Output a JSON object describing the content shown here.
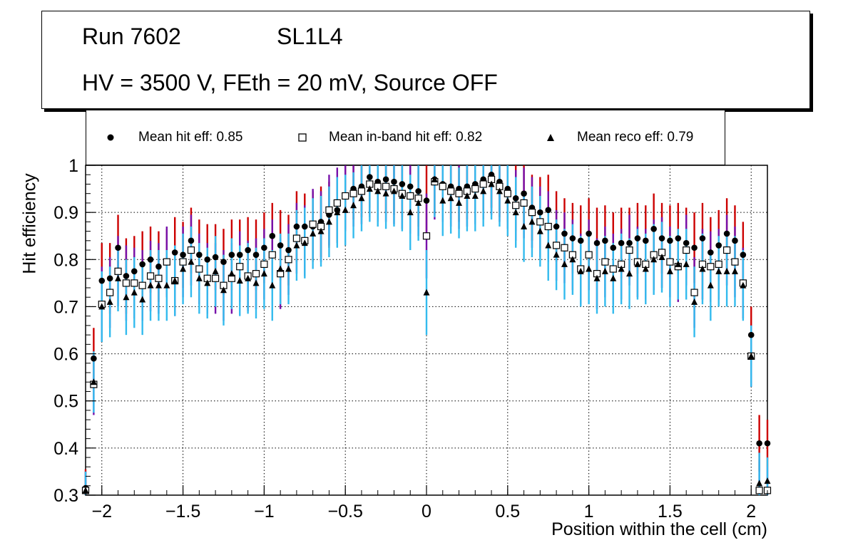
{
  "header": {
    "run_label": "Run 7602",
    "layer_label": "SL1L4",
    "conditions": "HV = 3500 V, FEth = 20 mV, Source OFF"
  },
  "legend": [
    {
      "marker": "filled-circle",
      "label": "Mean hit  eff: 0.85"
    },
    {
      "marker": "open-square",
      "label": "Mean in-band hit eff: 0.82"
    },
    {
      "marker": "filled-triangle",
      "label": "Mean reco eff: 0.79"
    }
  ],
  "chart_data": {
    "type": "scatter",
    "xlabel": "Position within the cell (cm)",
    "ylabel": "Hit efficiency",
    "xlim": [
      -2.1,
      2.1
    ],
    "ylim": [
      0.3,
      1.0
    ],
    "xticks": [
      {
        "value": -2,
        "label": "−2"
      },
      {
        "value": -1.5,
        "label": "−1.5"
      },
      {
        "value": -1,
        "label": "−1"
      },
      {
        "value": -0.5,
        "label": "−0.5"
      },
      {
        "value": 0,
        "label": "0"
      },
      {
        "value": 0.5,
        "label": "0.5"
      },
      {
        "value": 1,
        "label": "1"
      },
      {
        "value": 1.5,
        "label": "1.5"
      },
      {
        "value": 2,
        "label": "2"
      }
    ],
    "yticks": [
      {
        "value": 0.3,
        "label": "0.3"
      },
      {
        "value": 0.4,
        "label": "0.4"
      },
      {
        "value": 0.5,
        "label": "0.5"
      },
      {
        "value": 0.6,
        "label": "0.6"
      },
      {
        "value": 0.7,
        "label": "0.7"
      },
      {
        "value": 0.8,
        "label": "0.8"
      },
      {
        "value": 0.9,
        "label": "0.9"
      },
      {
        "value": 1.0,
        "label": "1"
      }
    ],
    "grid": true,
    "x": [
      -2.1,
      -2.05,
      -2.0,
      -1.95,
      -1.9,
      -1.85,
      -1.8,
      -1.75,
      -1.7,
      -1.65,
      -1.6,
      -1.55,
      -1.5,
      -1.45,
      -1.4,
      -1.35,
      -1.3,
      -1.25,
      -1.2,
      -1.15,
      -1.1,
      -1.05,
      -1.0,
      -0.95,
      -0.9,
      -0.85,
      -0.8,
      -0.75,
      -0.7,
      -0.65,
      -0.6,
      -0.55,
      -0.5,
      -0.45,
      -0.4,
      -0.35,
      -0.3,
      -0.25,
      -0.2,
      -0.15,
      -0.1,
      -0.05,
      0.0,
      0.05,
      0.1,
      0.15,
      0.2,
      0.25,
      0.3,
      0.35,
      0.4,
      0.45,
      0.5,
      0.55,
      0.6,
      0.65,
      0.7,
      0.75,
      0.8,
      0.85,
      0.9,
      0.95,
      1.0,
      1.05,
      1.1,
      1.15,
      1.2,
      1.25,
      1.3,
      1.35,
      1.4,
      1.45,
      1.5,
      1.55,
      1.6,
      1.65,
      1.7,
      1.75,
      1.8,
      1.85,
      1.9,
      1.95,
      2.0,
      2.05,
      2.1
    ],
    "series": [
      {
        "name": "Mean hit eff",
        "marker": "filled-circle",
        "error_color": "#cc0000",
        "errors": [
          0.04,
          0.065,
          0.08,
          0.075,
          0.07,
          0.08,
          0.075,
          0.07,
          0.07,
          0.075,
          0.07,
          0.075,
          0.07,
          0.07,
          0.075,
          0.075,
          0.07,
          0.07,
          0.075,
          0.075,
          0.07,
          0.075,
          0.075,
          0.07,
          0.075,
          0.075,
          0.075,
          0.07,
          0.075,
          0.075,
          0.07,
          0.07,
          0.07,
          0.065,
          0.065,
          0.065,
          0.07,
          0.07,
          0.07,
          0.07,
          0.075,
          0.075,
          0.08,
          0.075,
          0.07,
          0.07,
          0.07,
          0.07,
          0.07,
          0.07,
          0.07,
          0.075,
          0.07,
          0.07,
          0.07,
          0.07,
          0.075,
          0.075,
          0.075,
          0.075,
          0.075,
          0.075,
          0.075,
          0.075,
          0.075,
          0.075,
          0.075,
          0.075,
          0.075,
          0.075,
          0.075,
          0.075,
          0.075,
          0.075,
          0.075,
          0.075,
          0.075,
          0.075,
          0.075,
          0.075,
          0.075,
          0.07,
          0.06,
          0.06,
          0.05
        ],
        "values": [
          0.315,
          0.59,
          0.755,
          0.76,
          0.825,
          0.765,
          0.775,
          0.79,
          0.8,
          0.785,
          0.795,
          0.815,
          0.81,
          0.84,
          0.81,
          0.8,
          0.805,
          0.795,
          0.81,
          0.81,
          0.82,
          0.81,
          0.825,
          0.85,
          0.83,
          0.82,
          0.87,
          0.87,
          0.87,
          0.88,
          0.895,
          0.905,
          0.935,
          0.95,
          0.955,
          0.975,
          0.965,
          0.97,
          0.965,
          0.96,
          0.955,
          0.945,
          0.925,
          0.97,
          0.96,
          0.955,
          0.95,
          0.955,
          0.96,
          0.97,
          0.98,
          0.965,
          0.95,
          0.93,
          0.94,
          0.91,
          0.9,
          0.905,
          0.87,
          0.855,
          0.845,
          0.84,
          0.855,
          0.835,
          0.84,
          0.825,
          0.835,
          0.835,
          0.845,
          0.84,
          0.865,
          0.845,
          0.84,
          0.845,
          0.835,
          0.825,
          0.845,
          0.815,
          0.83,
          0.855,
          0.84,
          0.81,
          0.64,
          0.41,
          0.41
        ]
      },
      {
        "name": "Mean in-band hit eff",
        "marker": "open-square",
        "error_color": "#7711aa",
        "errors": [
          0.04,
          0.065,
          0.08,
          0.075,
          0.075,
          0.08,
          0.075,
          0.075,
          0.075,
          0.075,
          0.075,
          0.075,
          0.075,
          0.075,
          0.075,
          0.075,
          0.075,
          0.075,
          0.075,
          0.075,
          0.075,
          0.075,
          0.075,
          0.075,
          0.075,
          0.075,
          0.075,
          0.075,
          0.075,
          0.075,
          0.075,
          0.075,
          0.075,
          0.07,
          0.07,
          0.07,
          0.075,
          0.075,
          0.075,
          0.075,
          0.08,
          0.08,
          0.09,
          0.08,
          0.075,
          0.075,
          0.075,
          0.075,
          0.075,
          0.075,
          0.075,
          0.075,
          0.075,
          0.075,
          0.075,
          0.075,
          0.075,
          0.075,
          0.075,
          0.075,
          0.075,
          0.075,
          0.075,
          0.075,
          0.075,
          0.075,
          0.075,
          0.075,
          0.075,
          0.075,
          0.075,
          0.075,
          0.075,
          0.075,
          0.075,
          0.075,
          0.075,
          0.075,
          0.075,
          0.075,
          0.075,
          0.075,
          0.065,
          0.065,
          0.05
        ],
        "values": [
          0.31,
          0.535,
          0.705,
          0.73,
          0.775,
          0.75,
          0.75,
          0.745,
          0.765,
          0.76,
          0.795,
          0.755,
          0.795,
          0.82,
          0.78,
          0.76,
          0.76,
          0.745,
          0.76,
          0.785,
          0.765,
          0.77,
          0.79,
          0.81,
          0.77,
          0.8,
          0.845,
          0.84,
          0.875,
          0.87,
          0.905,
          0.92,
          0.935,
          0.94,
          0.945,
          0.96,
          0.955,
          0.955,
          0.95,
          0.94,
          0.935,
          0.93,
          0.85,
          0.965,
          0.955,
          0.945,
          0.94,
          0.945,
          0.95,
          0.96,
          0.97,
          0.955,
          0.94,
          0.915,
          0.92,
          0.9,
          0.88,
          0.87,
          0.83,
          0.825,
          0.81,
          0.78,
          0.81,
          0.77,
          0.795,
          0.78,
          0.79,
          0.82,
          0.795,
          0.79,
          0.81,
          0.815,
          0.795,
          0.785,
          0.82,
          0.73,
          0.79,
          0.785,
          0.79,
          0.82,
          0.795,
          0.75,
          0.595,
          0.31,
          0.31
        ]
      },
      {
        "name": "Mean reco eff",
        "marker": "filled-triangle",
        "error_color": "#33bbee",
        "errors": [
          0.04,
          0.065,
          0.075,
          0.075,
          0.07,
          0.08,
          0.075,
          0.075,
          0.075,
          0.075,
          0.075,
          0.075,
          0.075,
          0.075,
          0.075,
          0.075,
          0.075,
          0.075,
          0.075,
          0.075,
          0.075,
          0.075,
          0.075,
          0.075,
          0.075,
          0.075,
          0.075,
          0.075,
          0.075,
          0.075,
          0.075,
          0.075,
          0.075,
          0.07,
          0.07,
          0.07,
          0.075,
          0.075,
          0.075,
          0.075,
          0.08,
          0.08,
          0.09,
          0.08,
          0.075,
          0.075,
          0.075,
          0.075,
          0.075,
          0.075,
          0.075,
          0.075,
          0.075,
          0.075,
          0.075,
          0.075,
          0.075,
          0.075,
          0.075,
          0.075,
          0.075,
          0.075,
          0.075,
          0.075,
          0.075,
          0.075,
          0.075,
          0.075,
          0.075,
          0.075,
          0.075,
          0.075,
          0.075,
          0.075,
          0.075,
          0.075,
          0.075,
          0.075,
          0.075,
          0.075,
          0.075,
          0.075,
          0.065,
          0.065,
          0.05
        ],
        "values": [
          0.31,
          0.54,
          0.7,
          0.71,
          0.76,
          0.72,
          0.73,
          0.715,
          0.745,
          0.745,
          0.745,
          0.755,
          0.78,
          0.795,
          0.76,
          0.75,
          0.775,
          0.735,
          0.77,
          0.755,
          0.76,
          0.75,
          0.77,
          0.745,
          0.78,
          0.78,
          0.83,
          0.835,
          0.855,
          0.86,
          0.88,
          0.9,
          0.905,
          0.915,
          0.93,
          0.95,
          0.945,
          0.94,
          0.945,
          0.935,
          0.9,
          0.92,
          0.73,
          0.97,
          0.925,
          0.93,
          0.92,
          0.935,
          0.935,
          0.945,
          0.96,
          0.945,
          0.925,
          0.9,
          0.87,
          0.88,
          0.86,
          0.83,
          0.81,
          0.79,
          0.8,
          0.775,
          0.78,
          0.76,
          0.775,
          0.76,
          0.78,
          0.77,
          0.79,
          0.78,
          0.8,
          0.805,
          0.775,
          0.79,
          0.79,
          0.71,
          0.78,
          0.745,
          0.775,
          0.775,
          0.775,
          0.745,
          0.595,
          0.325,
          0.33
        ]
      }
    ]
  }
}
